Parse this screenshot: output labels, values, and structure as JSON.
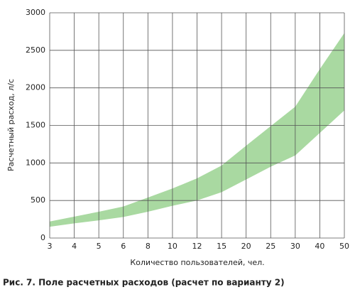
{
  "chart_data": {
    "type": "band",
    "categories": [
      "3",
      "4",
      "5",
      "6",
      "8",
      "10",
      "12",
      "15",
      "20",
      "25",
      "30",
      "40",
      "50"
    ],
    "series": [
      {
        "color": "#a9d9a1",
        "values": [
          150,
          195,
          235,
          280,
          350,
          430,
          500,
          610,
          780,
          950,
          1100,
          1400,
          1700
        ]
      },
      {
        "color": "#a9d9a1",
        "values": [
          220,
          285,
          350,
          420,
          540,
          660,
          795,
          965,
          1230,
          1490,
          1750,
          2250,
          2730
        ]
      }
    ],
    "ylim": [
      0,
      3000
    ],
    "yticks": [
      0,
      500,
      1000,
      1500,
      2000,
      2500,
      3000
    ],
    "grid": true,
    "ylabel": "Расчетный расход, л/с",
    "xlabel": "Количество пользователей, чел.",
    "caption": "Рис. 7. Поле расчетных расходов (расчет по варианту 2)"
  }
}
